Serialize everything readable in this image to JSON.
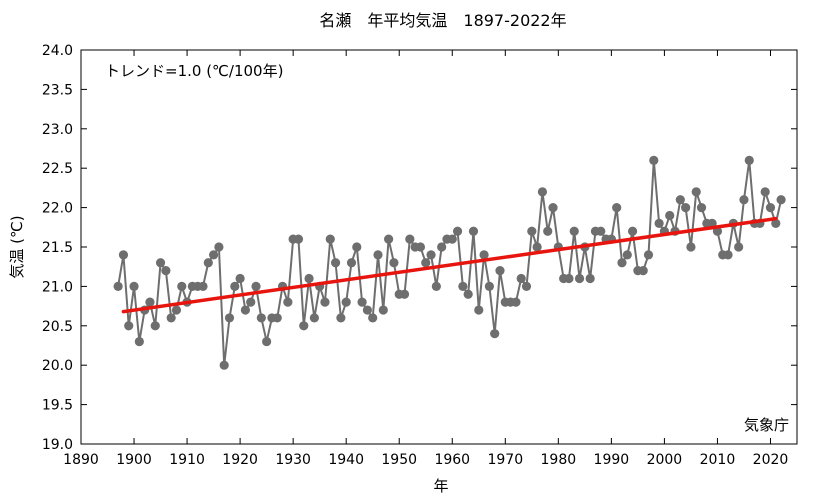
{
  "chart_data": {
    "type": "line",
    "title": "名瀬　年平均気温　1897-2022年",
    "xlabel": "年",
    "ylabel": "気温 (℃)",
    "xlim": [
      1890,
      2025
    ],
    "ylim": [
      19.0,
      24.0
    ],
    "xticks": [
      1890,
      1900,
      1910,
      1920,
      1930,
      1940,
      1950,
      1960,
      1970,
      1980,
      1990,
      2000,
      2010,
      2020
    ],
    "yticks": [
      "19.0",
      "19.5",
      "20.0",
      "20.5",
      "21.0",
      "21.5",
      "22.0",
      "22.5",
      "23.0",
      "23.5",
      "24.0"
    ],
    "grid": false,
    "trend_label": "トレンド=1.0 (℃/100年)",
    "credit": "気象庁",
    "colors": {
      "series": "#6e6e6e",
      "trend": "#e8140e"
    },
    "trend": {
      "x": [
        1898,
        2021
      ],
      "y": [
        20.68,
        21.86
      ]
    },
    "series": [
      {
        "x": [
          1897,
          1898,
          1899,
          1900,
          1901,
          1902,
          1903,
          1904,
          1905,
          1906,
          1907,
          1908,
          1909,
          1910,
          1911,
          1912,
          1913,
          1914,
          1915,
          1916,
          1917,
          1918,
          1919,
          1920,
          1921,
          1922,
          1923,
          1924,
          1925,
          1926,
          1927,
          1928,
          1929,
          1930,
          1931,
          1932,
          1933,
          1934,
          1935,
          1936,
          1937,
          1938,
          1939,
          1940,
          1941,
          1942,
          1943,
          1944,
          1945,
          1946,
          1947,
          1948,
          1949,
          1950,
          1951,
          1952,
          1953,
          1954,
          1955,
          1956,
          1957,
          1958,
          1959,
          1960,
          1961,
          1962,
          1963,
          1964,
          1965,
          1966,
          1967,
          1968,
          1969,
          1970,
          1971,
          1972,
          1973,
          1974,
          1975,
          1976,
          1977,
          1978,
          1979,
          1980,
          1981,
          1982,
          1983,
          1984,
          1985,
          1986,
          1987,
          1988,
          1989,
          1990,
          1991,
          1992,
          1993,
          1994,
          1995,
          1996,
          1997,
          1998,
          1999,
          2000,
          2001,
          2002,
          2003,
          2004,
          2005,
          2006,
          2007,
          2008,
          2009,
          2010,
          2011,
          2012,
          2013,
          2014,
          2015,
          2016,
          2017,
          2018,
          2019,
          2020,
          2021,
          2022
        ],
        "y": [
          21.0,
          21.4,
          20.5,
          21.0,
          20.3,
          20.7,
          20.8,
          20.5,
          21.3,
          21.2,
          20.6,
          20.7,
          21.0,
          20.8,
          21.0,
          21.0,
          21.0,
          21.3,
          21.4,
          21.5,
          20.0,
          20.6,
          21.0,
          21.1,
          20.7,
          20.8,
          21.0,
          20.6,
          20.3,
          20.6,
          20.6,
          21.0,
          20.8,
          21.6,
          21.6,
          20.5,
          21.1,
          20.6,
          21.0,
          20.8,
          21.6,
          21.3,
          20.6,
          20.8,
          21.3,
          21.5,
          20.8,
          20.7,
          20.6,
          21.4,
          20.7,
          21.6,
          21.3,
          20.9,
          20.9,
          21.6,
          21.5,
          21.5,
          21.3,
          21.4,
          21.0,
          21.5,
          21.6,
          21.6,
          21.7,
          21.0,
          20.9,
          21.7,
          20.7,
          21.4,
          21.0,
          20.4,
          21.2,
          20.8,
          20.8,
          20.8,
          21.1,
          21.0,
          21.7,
          21.5,
          22.2,
          21.7,
          22.0,
          21.5,
          21.1,
          21.1,
          21.7,
          21.1,
          21.5,
          21.1,
          21.7,
          21.7,
          21.6,
          21.6,
          22.0,
          21.3,
          21.4,
          21.7,
          21.2,
          21.2,
          21.4,
          22.6,
          21.8,
          21.7,
          21.9,
          21.7,
          22.1,
          22.0,
          21.5,
          22.2,
          22.0,
          21.8,
          21.8,
          21.7,
          21.4,
          21.4,
          21.8,
          21.5,
          22.1,
          22.6,
          21.8,
          21.8,
          22.2,
          22.0,
          21.8,
          22.1
        ]
      }
    ]
  }
}
